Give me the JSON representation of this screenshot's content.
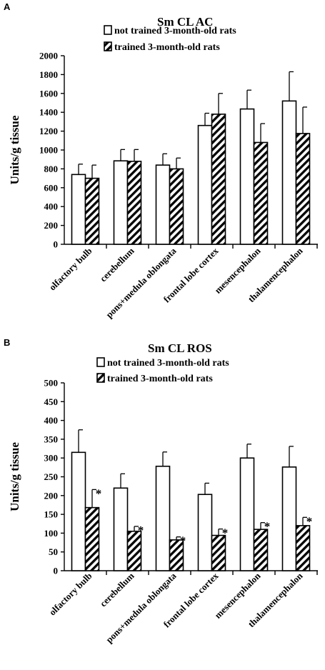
{
  "chart_data": [
    {
      "panel": "A",
      "type": "bar",
      "title": "Sm CL AC",
      "ylabel": "Units/g tissue",
      "xlabel": "",
      "ylim": [
        0,
        2000
      ],
      "yticks": [
        0,
        200,
        400,
        600,
        800,
        1000,
        1200,
        1400,
        1600,
        1800,
        2000
      ],
      "categories": [
        "olfactory bulb",
        "cerebellum",
        "pons+medula oblongata",
        "frontal lobe cortex",
        "mesencephalon",
        "thalamencephalon"
      ],
      "series": [
        {
          "name": "not trained 3-month-old rats",
          "pattern": "solid-white",
          "values": [
            740,
            885,
            840,
            1260,
            1435,
            1520
          ],
          "errors": [
            110,
            120,
            120,
            130,
            200,
            310
          ]
        },
        {
          "name": "trained 3-month-old rats",
          "pattern": "hatched",
          "values": [
            700,
            880,
            800,
            1380,
            1080,
            1175
          ],
          "errors": [
            140,
            125,
            115,
            220,
            200,
            280
          ]
        }
      ],
      "significance": [
        "",
        "",
        "",
        "",
        "",
        ""
      ],
      "grid": false,
      "legend": "top"
    },
    {
      "panel": "B",
      "type": "bar",
      "title": "Sm CL ROS",
      "ylabel": "Units/g tissue",
      "xlabel": "",
      "ylim": [
        0,
        500
      ],
      "yticks": [
        0,
        50,
        100,
        150,
        200,
        250,
        300,
        350,
        400,
        450,
        500
      ],
      "categories": [
        "olfactory bulb",
        "cerebellum",
        "pons+medula oblongata",
        "frontal lobe cortex",
        "mesencephalon",
        "thalamencephalon"
      ],
      "series": [
        {
          "name": "not trained 3-month-old rats",
          "pattern": "solid-white",
          "values": [
            315,
            220,
            278,
            203,
            300,
            276
          ],
          "errors": [
            60,
            38,
            38,
            30,
            37,
            55
          ]
        },
        {
          "name": "trained 3-month-old rats",
          "pattern": "hatched",
          "values": [
            168,
            105,
            82,
            94,
            110,
            120
          ],
          "errors": [
            48,
            13,
            8,
            17,
            18,
            22
          ]
        }
      ],
      "significance": [
        "*",
        "*",
        "*",
        "*",
        "*",
        "*"
      ],
      "grid": false,
      "legend": "top"
    }
  ]
}
